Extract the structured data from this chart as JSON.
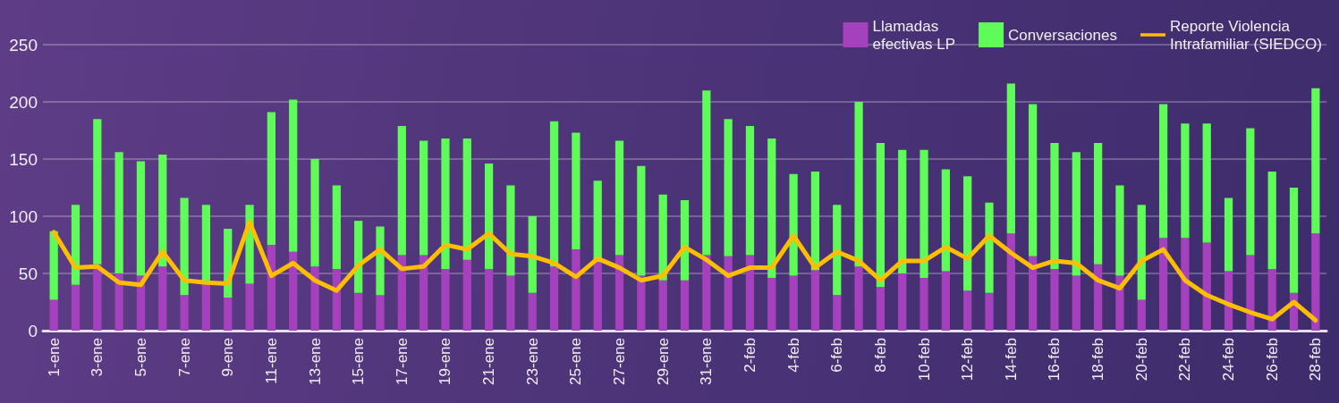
{
  "chart_data": {
    "type": "bar",
    "stacked": true,
    "categories": [
      "1-ene",
      null,
      "3-ene",
      null,
      "5-ene",
      null,
      "7-ene",
      null,
      "9-ene",
      null,
      "11-ene",
      null,
      "13-ene",
      null,
      "15-ene",
      null,
      "17-ene",
      null,
      "19-ene",
      null,
      "21-ene",
      null,
      "23-ene",
      null,
      "25-ene",
      null,
      "27-ene",
      null,
      "29-ene",
      null,
      "31-ene",
      null,
      "2-feb",
      null,
      "4-feb",
      null,
      "6-feb",
      null,
      "8-feb",
      null,
      "10-feb",
      null,
      "12-feb",
      null,
      "14-feb",
      null,
      "16-feb",
      null,
      "18-feb",
      null,
      "20-feb",
      null,
      "22-feb",
      null,
      "24-feb",
      null,
      "26-feb",
      null,
      "28-feb"
    ],
    "series": [
      {
        "name": "Llamadas efectivas LP",
        "color": "#a641bd",
        "values": [
          27,
          40,
          58,
          50,
          48,
          56,
          31,
          41,
          29,
          41,
          75,
          69,
          56,
          54,
          33,
          31,
          66,
          66,
          54,
          62,
          54,
          48,
          33,
          56,
          71,
          60,
          66,
          48,
          44,
          44,
          66,
          65,
          66,
          46,
          48,
          53,
          31,
          56,
          38,
          50,
          46,
          52,
          35,
          33,
          85,
          65,
          54,
          48,
          58,
          48,
          27,
          81,
          81,
          77,
          52,
          66,
          54,
          33,
          85
        ]
      },
      {
        "name": "Conversaciones",
        "color": "#5ffb58",
        "values": [
          60,
          70,
          127,
          106,
          100,
          98,
          85,
          69,
          60,
          69,
          116,
          133,
          94,
          73,
          63,
          60,
          113,
          100,
          114,
          106,
          92,
          79,
          67,
          127,
          102,
          71,
          100,
          96,
          75,
          70,
          144,
          120,
          113,
          122,
          89,
          86,
          79,
          144,
          126,
          108,
          112,
          89,
          100,
          79,
          131,
          133,
          110,
          108,
          106,
          79,
          83,
          117,
          100,
          104,
          64,
          111,
          85,
          92,
          127
        ]
      },
      {
        "name": "Reporte Violencia Intrafamiliar (SIEDCO)",
        "type": "line",
        "color": "#ffbf00",
        "values": [
          86,
          55,
          56,
          42,
          40,
          69,
          44,
          42,
          41,
          95,
          48,
          59,
          44,
          35,
          57,
          71,
          54,
          56,
          75,
          71,
          85,
          67,
          65,
          59,
          47,
          63,
          55,
          44,
          48,
          73,
          62,
          48,
          55,
          55,
          83,
          55,
          69,
          61,
          44,
          61,
          61,
          73,
          63,
          83,
          68,
          55,
          61,
          59,
          44,
          37,
          61,
          71,
          44,
          31,
          23,
          16,
          10,
          25,
          9
        ]
      }
    ],
    "ylim": [
      0,
      250
    ],
    "yticks": [
      0,
      50,
      100,
      150,
      200,
      250
    ],
    "grid": "y",
    "legend": "top right",
    "marker": "none",
    "line_style": "solid"
  }
}
